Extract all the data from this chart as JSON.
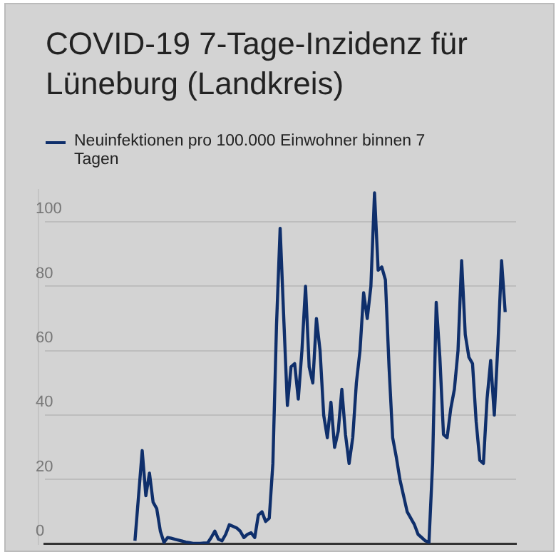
{
  "chart_data": {
    "type": "line",
    "title": "COVID-19 7-Tage-Inzidenz für Lüneburg (Landkreis)",
    "categories": [
      null,
      null,
      null,
      null,
      null,
      null,
      null,
      null,
      null,
      null,
      null,
      null,
      null,
      null,
      null,
      null,
      null,
      null,
      null,
      null,
      null,
      null,
      null,
      null,
      null,
      null,
      null,
      null,
      null,
      null,
      null,
      null,
      null,
      null,
      null,
      null,
      null,
      null,
      null,
      null,
      null,
      null,
      null,
      null,
      null,
      null,
      null,
      null,
      null,
      null,
      null,
      null,
      null,
      null,
      null,
      null,
      null,
      null,
      null,
      null,
      null,
      null,
      null,
      null,
      null,
      null,
      null,
      null,
      null,
      null,
      null,
      null,
      null,
      null,
      null,
      null,
      null,
      null,
      null,
      null,
      null,
      null,
      null,
      null,
      null,
      null,
      null,
      null,
      null,
      null,
      null,
      null,
      null,
      null,
      null,
      null,
      null,
      null,
      null,
      null,
      null,
      null,
      null,
      null,
      null,
      null,
      null,
      null,
      null,
      null,
      null,
      null,
      null,
      null,
      null,
      null,
      null,
      null,
      null,
      null,
      null,
      null,
      null,
      null,
      null,
      null,
      null,
      null,
      null,
      null,
      null
    ],
    "series": [
      {
        "name": "Neuinfektionen pro 100.000 Einwohner binnen 7 Tagen",
        "color": "#0f2f6b",
        "values": [
          null,
          null,
          null,
          null,
          null,
          null,
          null,
          null,
          null,
          null,
          null,
          null,
          null,
          null,
          null,
          null,
          null,
          null,
          null,
          null,
          null,
          null,
          null,
          null,
          null,
          1,
          15,
          29,
          15,
          22,
          13,
          11,
          4,
          0.5,
          2,
          1.8,
          1.5,
          1.2,
          0.9,
          0.6,
          0.4,
          0.2,
          0.2,
          0.2,
          0.3,
          0.3,
          2,
          4,
          1.5,
          1,
          3,
          6,
          5.5,
          5,
          4,
          2,
          3,
          3.5,
          2,
          9,
          10,
          7,
          8,
          25,
          68,
          98,
          70,
          43,
          55,
          56,
          45,
          60,
          80,
          55,
          50,
          70,
          60,
          40,
          33,
          44,
          30,
          35,
          48,
          34,
          25,
          33,
          50,
          60,
          78,
          70,
          80,
          109,
          85,
          86,
          82,
          55,
          33,
          27,
          20,
          15,
          10,
          8,
          6,
          3,
          2,
          1,
          0.5,
          25,
          75,
          58,
          34,
          33,
          42,
          48,
          60,
          88,
          65,
          58,
          56,
          38,
          26,
          25,
          45,
          57,
          40,
          62,
          88,
          72,
          null,
          null,
          null
        ]
      }
    ],
    "ylim": [
      0,
      110
    ],
    "yticks": [
      0,
      20,
      40,
      60,
      80,
      100
    ],
    "grid": "y",
    "legend": "top left",
    "marker": "none",
    "line_style": "solid",
    "tick_labels": "y"
  }
}
